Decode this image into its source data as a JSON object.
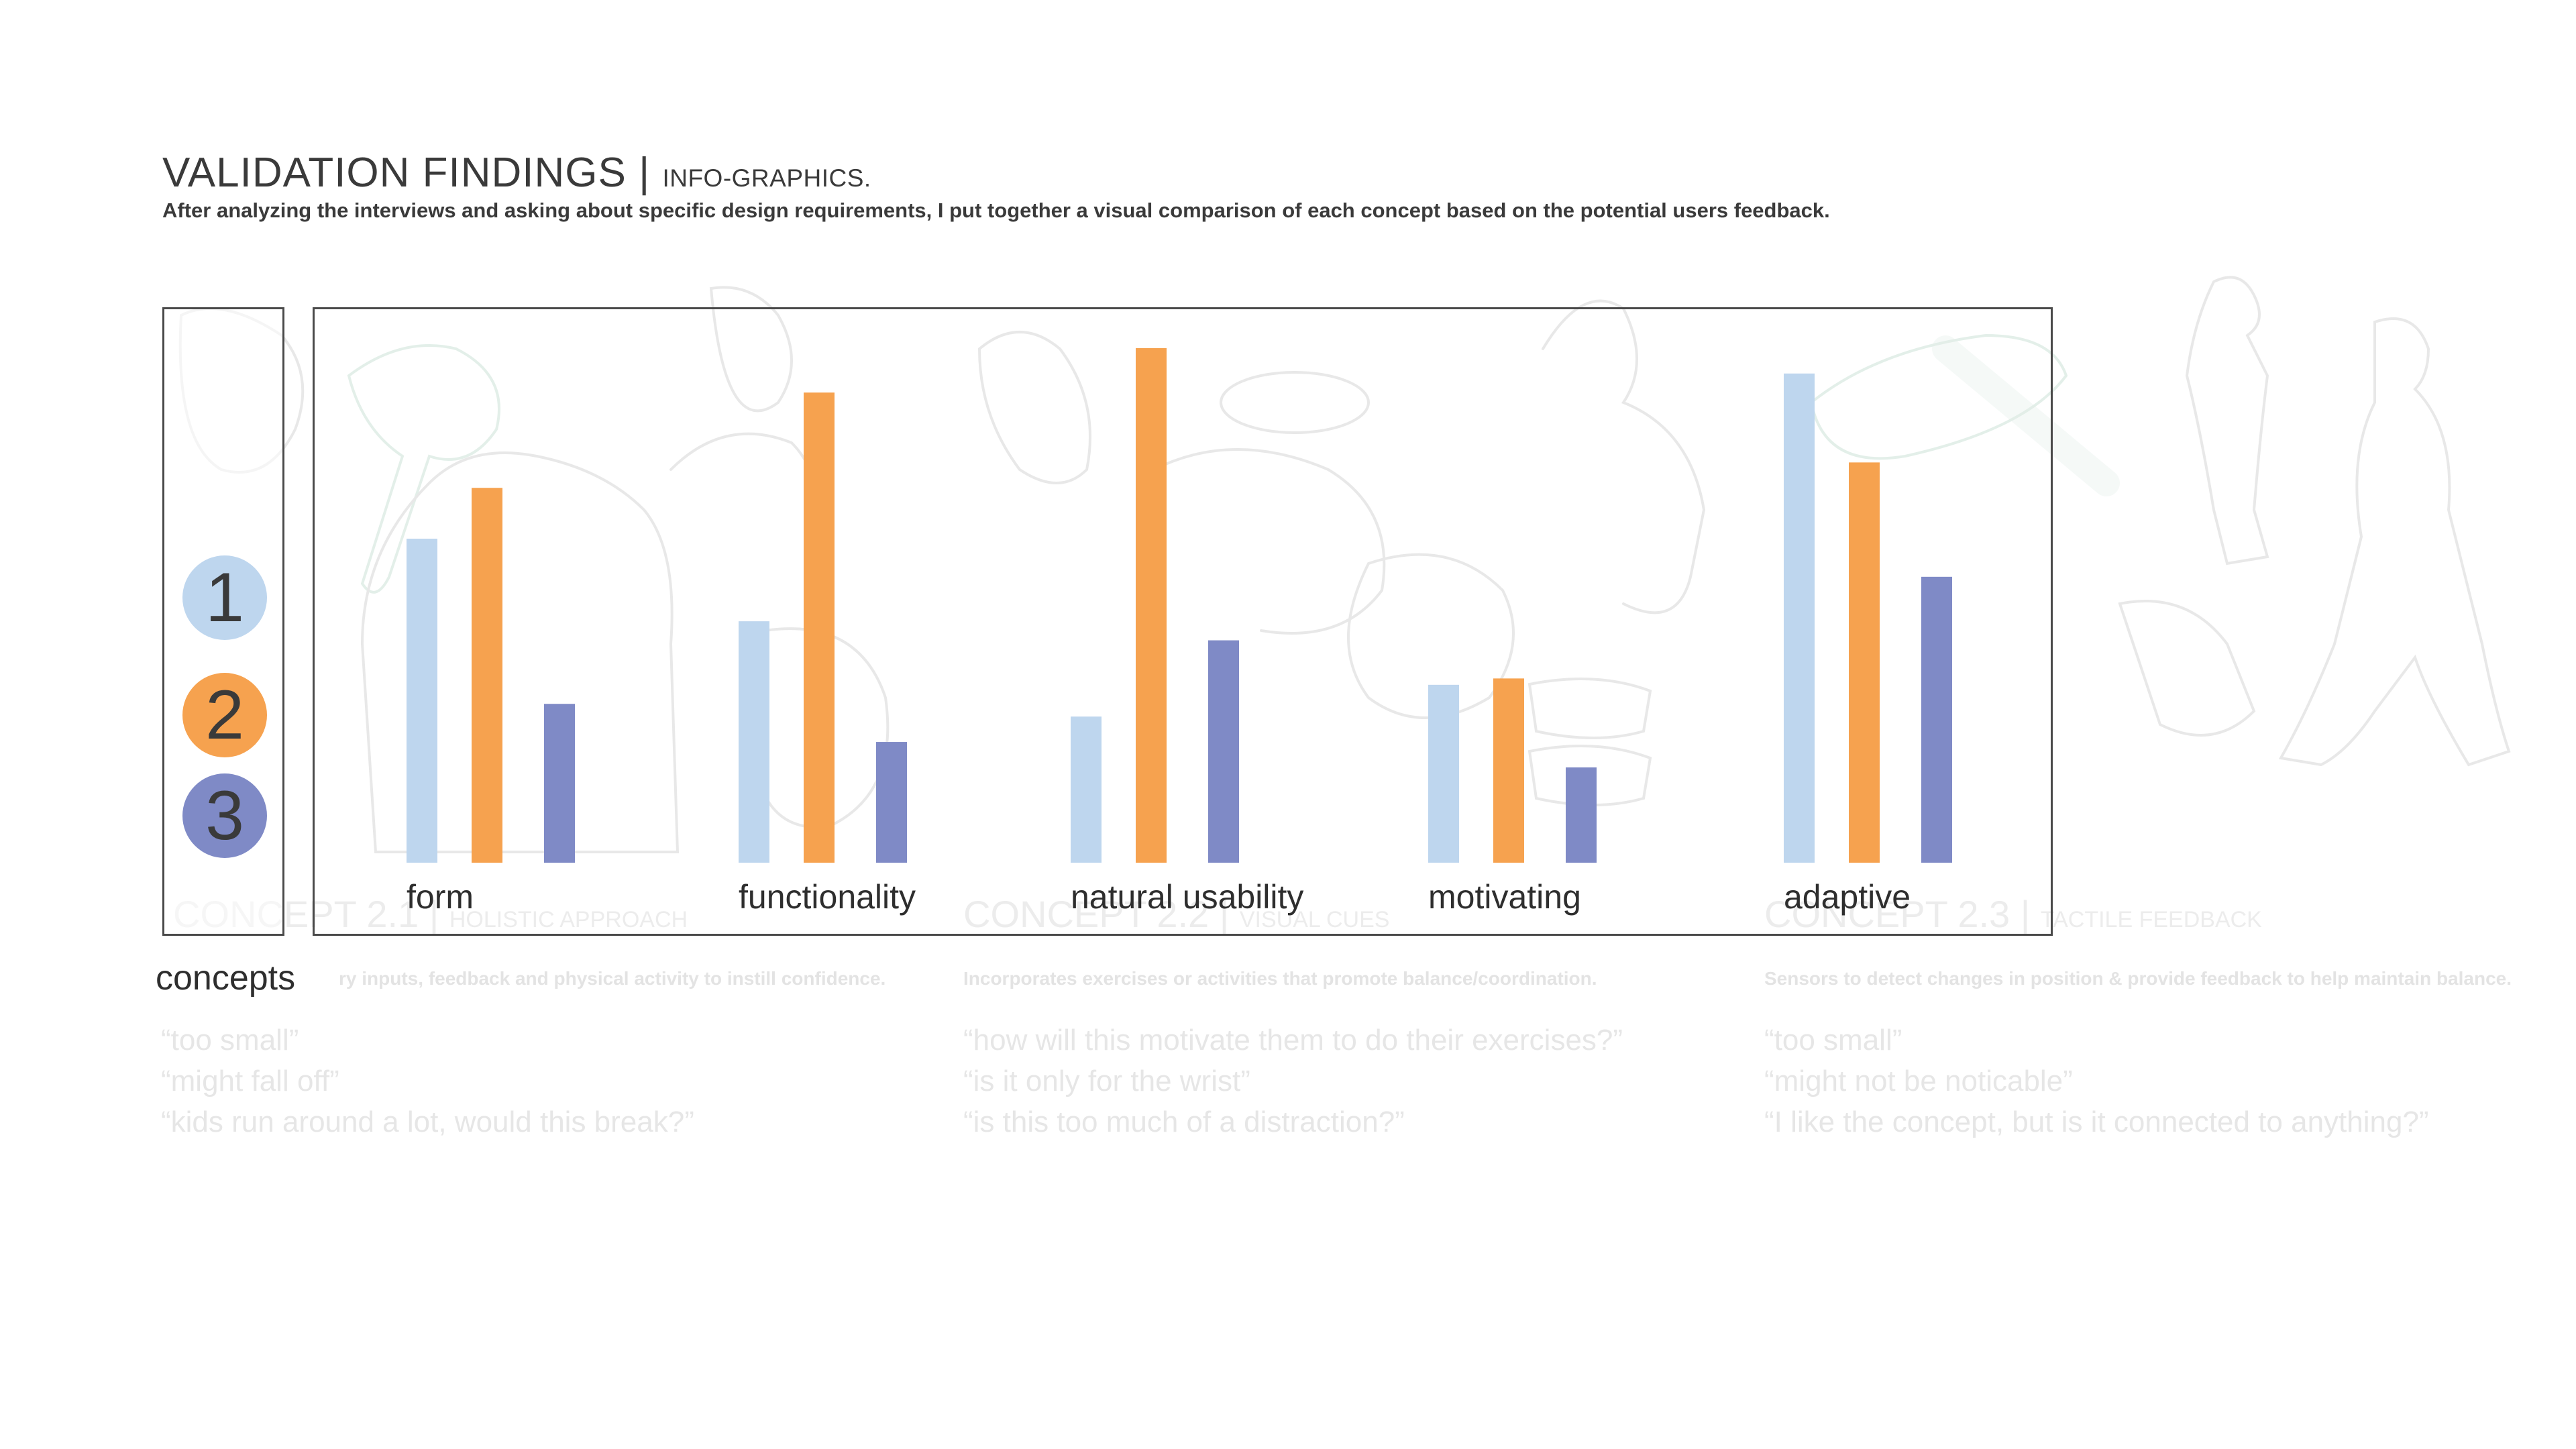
{
  "header": {
    "title": "VALIDATION FINDINGS | ",
    "title_sub": "INFO-GRAPHICS.",
    "subtitle": "After analyzing the interviews and asking about specific design requirements, I put together a visual comparison of each concept based on the potential users feedback."
  },
  "background": {
    "concepts": [
      {
        "head": "CONCEPT 2.1 | ",
        "tag": "HOLISTIC APPROACH",
        "desc": "ry inputs, feedback and physical activity to instill confidence.",
        "quotes": [
          "“too small”",
          "“might fall off”",
          "“kids run around a lot, would this break?”"
        ]
      },
      {
        "head": "CONCEPT 2.2 | ",
        "tag": "VISUAL CUES",
        "desc": "Incorporates exercises or activities that promote balance/coordination.",
        "quotes": [
          "“how will this motivate them to do their exercises?”",
          "“is it only for the wrist”",
          "“is this too much of a distraction?”"
        ]
      },
      {
        "head": "CONCEPT 2.3 | ",
        "tag": "TACTILE FEEDBACK",
        "desc": "Sensors to detect changes in position & provide feedback to help maintain balance.",
        "quotes": [
          "“too small”",
          "“might not be noticable”",
          "“I like the concept, but is it connected to anything?”"
        ]
      }
    ]
  },
  "legend": {
    "label": "concepts",
    "items": [
      {
        "label": "1",
        "color": "#bed6ee"
      },
      {
        "label": "2",
        "color": "#f6a24f"
      },
      {
        "label": "3",
        "color": "#7f8ac6"
      }
    ]
  },
  "chart_data": {
    "type": "bar",
    "categories": [
      "form",
      "functionality",
      "natural usability",
      "motivating",
      "adaptive"
    ],
    "series": [
      {
        "name": "1",
        "color": "#bed6ee",
        "values": [
          5.1,
          3.8,
          2.3,
          2.8,
          7.7
        ]
      },
      {
        "name": "2",
        "color": "#f6a24f",
        "values": [
          5.9,
          7.4,
          8.1,
          2.9,
          6.3
        ]
      },
      {
        "name": "3",
        "color": "#7f8ac6",
        "values": [
          2.5,
          1.9,
          3.5,
          1.5,
          4.5
        ]
      }
    ],
    "ylim": [
      0,
      8.5
    ],
    "grid": false,
    "legend": "left"
  }
}
